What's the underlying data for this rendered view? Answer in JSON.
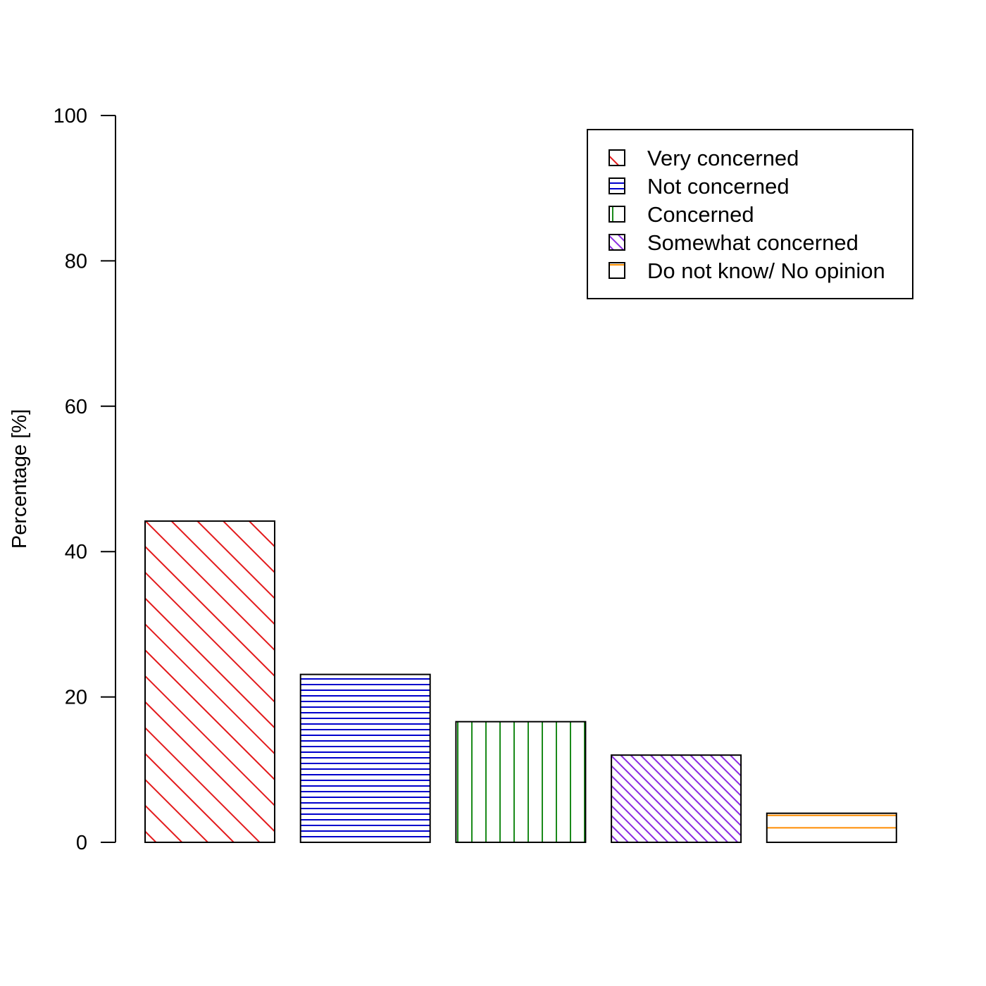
{
  "chart_data": {
    "type": "bar",
    "categories": [
      "Very concerned",
      "Not concerned",
      "Concerned",
      "Somewhat concerned",
      "Do not know/ No opinion"
    ],
    "values": [
      44.2,
      23.1,
      16.6,
      12.0,
      4.0
    ],
    "ylabel": "Percentage [%]",
    "xlabel": "",
    "ylim": [
      0,
      100
    ],
    "yticks": [
      0,
      20,
      40,
      60,
      80,
      100
    ],
    "grid": false,
    "legend_position": "top-right",
    "colors": [
      "#e31a1c",
      "#0000cc",
      "#1a8a1a",
      "#8a2be2",
      "#ff8c00"
    ],
    "patterns": [
      "diagonal-sparse",
      "horizontal-dense",
      "vertical-sparse",
      "diagonal-dense",
      "horizontal-two-lines"
    ]
  }
}
